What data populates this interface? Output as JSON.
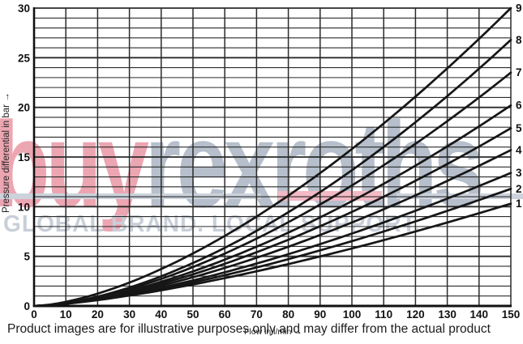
{
  "watermark": {
    "brand_prefix": "buy",
    "brand_suffix": "rexroths",
    "tagline": "GLOBAL BRAND. LOCAL SUPPORT.",
    "colors": {
      "prefix": "#eca6b2",
      "suffix": "#b6bfcb",
      "tagline": "#c9cfd9",
      "bar_gray": "#ccd3dc",
      "bar_red": "#f3bac5"
    }
  },
  "caption": "Product images are for illustrative purposes only and may differ from the actual product",
  "chart_data": {
    "type": "line",
    "title": "",
    "xlabel": "Flow in l/min →",
    "ylabel": "Pressure differential in bar →",
    "xlim": [
      0,
      150
    ],
    "ylim": [
      0,
      30
    ],
    "x_tick_step": 10,
    "y_grid_step": 1,
    "y_label_step": 5,
    "grid": true,
    "legend_position": "curve-end-labels-right",
    "x_samples": [
      0,
      25,
      50,
      75,
      100,
      125,
      150
    ],
    "series": [
      {
        "name": "1",
        "end_value": 10.3,
        "exponent": 1.42,
        "values": [
          0,
          0.8,
          2.2,
          3.9,
          5.8,
          8.0,
          10.3
        ]
      },
      {
        "name": "2",
        "end_value": 11.8,
        "exponent": 1.46,
        "values": [
          0,
          0.9,
          2.4,
          4.3,
          6.5,
          9.0,
          11.8
        ]
      },
      {
        "name": "3",
        "end_value": 13.4,
        "exponent": 1.5,
        "values": [
          0,
          0.9,
          2.6,
          4.7,
          7.3,
          10.2,
          13.4
        ]
      },
      {
        "name": "4",
        "end_value": 15.7,
        "exponent": 1.54,
        "values": [
          0,
          1.0,
          2.9,
          5.4,
          8.4,
          11.9,
          15.7
        ]
      },
      {
        "name": "5",
        "end_value": 17.9,
        "exponent": 1.57,
        "values": [
          0,
          1.1,
          3.2,
          6.0,
          9.5,
          13.4,
          17.9
        ]
      },
      {
        "name": "6",
        "end_value": 20.2,
        "exponent": 1.6,
        "values": [
          0,
          1.1,
          3.5,
          6.7,
          10.6,
          15.1,
          20.2
        ]
      },
      {
        "name": "7",
        "end_value": 23.5,
        "exponent": 1.63,
        "values": [
          0,
          1.3,
          3.9,
          7.6,
          12.1,
          17.5,
          23.5
        ]
      },
      {
        "name": "8",
        "end_value": 26.8,
        "exponent": 1.66,
        "values": [
          0,
          1.4,
          4.3,
          8.5,
          13.7,
          19.8,
          26.8
        ]
      },
      {
        "name": "9",
        "end_value": 30.0,
        "exponent": 1.58,
        "values": [
          0,
          1.8,
          5.3,
          10.0,
          15.8,
          22.5,
          30.0
        ]
      }
    ],
    "style": {
      "grid_color": "#2b2b2b",
      "axis_color": "#111111",
      "curve_color": "#161616",
      "tick_color": "#111111"
    }
  }
}
